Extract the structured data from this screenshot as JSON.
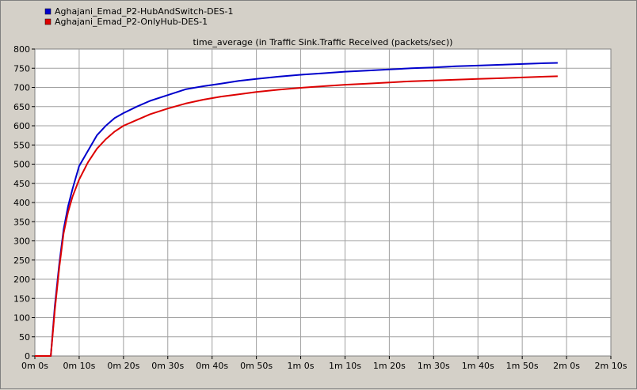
{
  "chart_data": {
    "type": "line",
    "title": "time_average (in Traffic Sink.Traffic Received (packets/sec))",
    "xlabel": "",
    "ylabel": "",
    "xlim": [
      0,
      130
    ],
    "ylim": [
      0,
      800
    ],
    "x_unit": "seconds",
    "x_ticks": [
      0,
      10,
      20,
      30,
      40,
      50,
      60,
      70,
      80,
      90,
      100,
      110,
      120,
      130
    ],
    "x_tick_labels": [
      "0m 0s",
      "0m 10s",
      "0m 20s",
      "0m 30s",
      "0m 40s",
      "0m 50s",
      "1m 0s",
      "1m 10s",
      "1m 20s",
      "1m 30s",
      "1m 40s",
      "1m 50s",
      "2m 0s",
      "2m 10s"
    ],
    "y_ticks": [
      0,
      50,
      100,
      150,
      200,
      250,
      300,
      350,
      400,
      450,
      500,
      550,
      600,
      650,
      700,
      750,
      800
    ],
    "y_tick_labels": [
      "0",
      "50",
      "100",
      "150",
      "200",
      "250",
      "300",
      "350",
      "400",
      "450",
      "500",
      "550",
      "600",
      "650",
      "700",
      "750",
      "800"
    ],
    "grid": true,
    "legend_position": "top-left",
    "series": [
      {
        "name": "Aghajani_Emad_P2-HubAndSwitch-DES-1",
        "color": "#0000cc",
        "x": [
          0,
          3.6,
          4.5,
          5.5,
          6.5,
          7.5,
          8.5,
          10,
          12,
          14,
          16,
          18,
          20,
          23,
          26,
          30,
          34,
          38,
          42,
          46,
          50,
          55,
          60,
          65,
          70,
          75,
          80,
          85,
          90,
          95,
          100,
          105,
          110,
          115,
          118
        ],
        "y": [
          0,
          0,
          130,
          240,
          330,
          390,
          435,
          495,
          535,
          575,
          600,
          620,
          633,
          650,
          665,
          680,
          695,
          703,
          710,
          717,
          722,
          728,
          733,
          737,
          741,
          744,
          747,
          750,
          752,
          755,
          757,
          759,
          761,
          763,
          764
        ]
      },
      {
        "name": "Aghajani_Emad_P2-OnlyHub-DES-1",
        "color": "#dd0000",
        "x": [
          0,
          3.6,
          4.5,
          5.5,
          6.5,
          7.5,
          8.5,
          10,
          12,
          14,
          16,
          18,
          20,
          23,
          26,
          30,
          34,
          38,
          42,
          46,
          50,
          55,
          60,
          65,
          70,
          75,
          80,
          85,
          90,
          95,
          100,
          105,
          110,
          115,
          118
        ],
        "y": [
          0,
          0,
          120,
          230,
          320,
          375,
          415,
          460,
          505,
          540,
          565,
          585,
          600,
          615,
          630,
          645,
          658,
          668,
          676,
          682,
          688,
          694,
          699,
          703,
          707,
          710,
          713,
          716,
          718,
          720,
          722,
          724,
          726,
          728,
          729
        ]
      }
    ]
  }
}
